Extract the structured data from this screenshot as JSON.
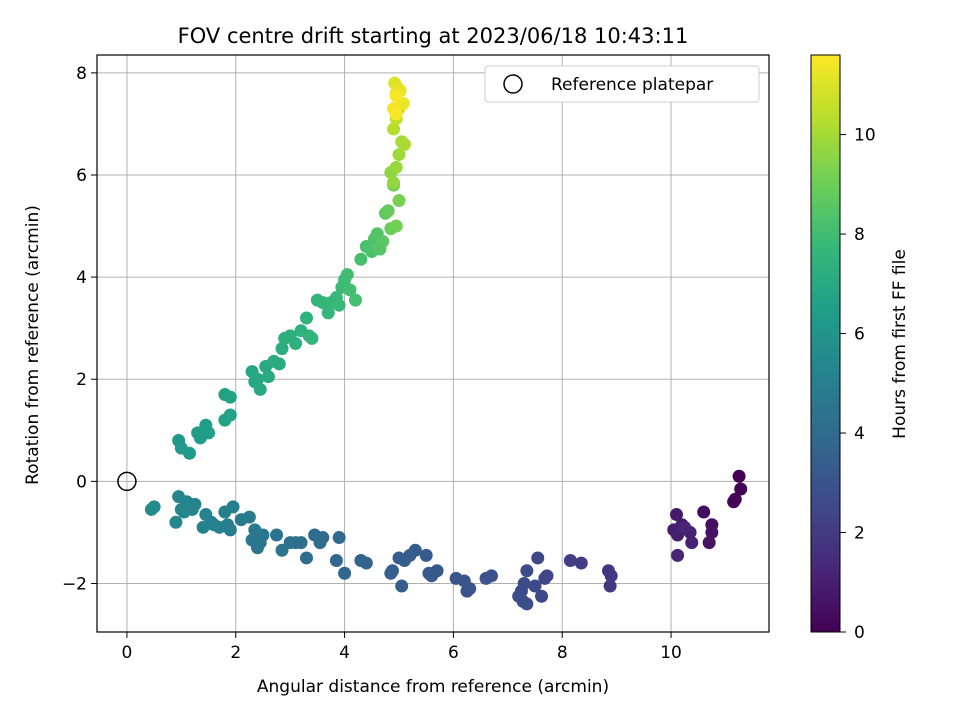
{
  "chart_data": {
    "type": "scatter",
    "title": "FOV centre drift starting at 2023/06/18 10:43:11",
    "xlabel": "Angular distance from reference (arcmin)",
    "ylabel": "Rotation from reference (arcmin)",
    "xlim": [
      -0.55,
      11.8
    ],
    "ylim": [
      -2.95,
      8.35
    ],
    "xticks": [
      0,
      2,
      4,
      6,
      8,
      10
    ],
    "yticks": [
      -2,
      0,
      2,
      4,
      6,
      8
    ],
    "grid": true,
    "legend": {
      "placement": "top-right",
      "entries": [
        "Reference platepar"
      ]
    },
    "reference_point": {
      "x": 0,
      "y": 0,
      "marker": "open-circle"
    },
    "colorbar": {
      "label": "Hours from first FF file",
      "range": [
        0,
        11.6
      ],
      "ticks": [
        0,
        2,
        4,
        6,
        8,
        10
      ],
      "colormap": "viridis",
      "stops": [
        "#440154",
        "#482878",
        "#3e4a89",
        "#31688e",
        "#26828e",
        "#1f9e89",
        "#35b779",
        "#6ece58",
        "#b5de2b",
        "#fde725"
      ]
    },
    "x": [
      11.25,
      11.28,
      11.18,
      11.15,
      10.6,
      10.75,
      10.75,
      10.7,
      10.1,
      10.2,
      10.05,
      10.12,
      10.35,
      10.38,
      10.12,
      10.25,
      8.85,
      8.9,
      8.88,
      8.35,
      8.15,
      7.72,
      7.68,
      7.62,
      7.55,
      7.5,
      7.35,
      7.3,
      7.25,
      7.2,
      7.28,
      7.35,
      6.7,
      6.6,
      6.3,
      6.25,
      6.2,
      6.05,
      5.7,
      5.6,
      5.55,
      5.5,
      5.3,
      5.2,
      5.1,
      5.05,
      5.0,
      4.88,
      4.85,
      4.4,
      4.3,
      4.0,
      3.9,
      3.85,
      3.6,
      3.55,
      3.45,
      3.3,
      3.2,
      3.1,
      3.0,
      2.85,
      2.75,
      2.5,
      2.45,
      2.4,
      2.3,
      2.35,
      2.25,
      2.1,
      1.95,
      1.9,
      1.85,
      1.8,
      1.7,
      1.6,
      1.55,
      1.45,
      1.4,
      1.25,
      1.2,
      1.1,
      1.05,
      1.0,
      0.95,
      0.9,
      0.5,
      0.45,
      0.95,
      1.0,
      1.15,
      1.3,
      1.35,
      1.45,
      1.5,
      1.8,
      1.9,
      1.9,
      1.8,
      2.3,
      2.35,
      2.4,
      2.45,
      2.55,
      2.6,
      2.7,
      2.8,
      2.85,
      2.9,
      3.0,
      3.1,
      3.2,
      3.3,
      3.35,
      3.4,
      3.5,
      3.6,
      3.7,
      3.75,
      3.85,
      3.9,
      3.95,
      4.0,
      4.05,
      4.1,
      4.2,
      4.3,
      4.4,
      4.5,
      4.55,
      4.6,
      4.65,
      4.7,
      4.75,
      4.8,
      4.85,
      4.9,
      4.95,
      5.0,
      4.85,
      4.9,
      4.95,
      5.0,
      5.05,
      5.1,
      4.9,
      4.95,
      5.0,
      4.95,
      4.92,
      4.98,
      5.02,
      5.08,
      4.9,
      4.95,
      4.95
    ],
    "y": [
      0.1,
      -0.15,
      -0.35,
      -0.4,
      -0.6,
      -0.85,
      -1.0,
      -1.2,
      -0.65,
      -0.85,
      -0.95,
      -1.05,
      -1.0,
      -1.2,
      -1.45,
      -0.9,
      -1.75,
      -1.85,
      -2.05,
      -1.6,
      -1.55,
      -1.85,
      -1.9,
      -2.25,
      -1.5,
      -2.05,
      -1.75,
      -2.0,
      -2.15,
      -2.25,
      -2.35,
      -2.4,
      -1.85,
      -1.9,
      -2.1,
      -2.15,
      -1.95,
      -1.9,
      -1.75,
      -1.85,
      -1.8,
      -1.45,
      -1.35,
      -1.45,
      -1.55,
      -2.05,
      -1.5,
      -1.75,
      -1.8,
      -1.6,
      -1.55,
      -1.8,
      -1.1,
      -1.55,
      -1.1,
      -1.2,
      -1.05,
      -1.5,
      -1.2,
      -1.2,
      -1.2,
      -1.35,
      -1.05,
      -1.05,
      -1.2,
      -1.3,
      -1.15,
      -0.95,
      -0.7,
      -0.75,
      -0.5,
      -0.95,
      -0.85,
      -0.6,
      -0.9,
      -0.85,
      -0.8,
      -0.65,
      -0.9,
      -0.45,
      -0.55,
      -0.4,
      -0.6,
      -0.55,
      -0.3,
      -0.8,
      -0.5,
      -0.55,
      0.8,
      0.65,
      0.55,
      0.95,
      0.85,
      1.1,
      0.95,
      1.7,
      1.65,
      1.3,
      1.2,
      2.15,
      1.95,
      2.0,
      1.8,
      2.25,
      2.05,
      2.35,
      2.3,
      2.6,
      2.8,
      2.85,
      2.7,
      2.95,
      3.2,
      2.85,
      2.8,
      3.55,
      3.5,
      3.3,
      3.5,
      3.6,
      3.45,
      3.8,
      3.95,
      4.05,
      3.75,
      3.55,
      4.35,
      4.6,
      4.5,
      4.75,
      4.85,
      4.55,
      4.7,
      5.25,
      5.3,
      4.95,
      5.8,
      5.0,
      5.5,
      6.05,
      5.85,
      6.15,
      6.4,
      6.65,
      6.6,
      6.9,
      7.1,
      7.3,
      7.6,
      7.8,
      7.7,
      7.65,
      7.4,
      7.3,
      7.55,
      7.2
    ],
    "hours": [
      0.0,
      0.05,
      0.1,
      0.15,
      0.4,
      0.5,
      0.55,
      0.6,
      0.8,
      0.9,
      0.95,
      1.0,
      1.05,
      1.1,
      1.15,
      1.2,
      1.8,
      1.85,
      1.9,
      2.1,
      2.15,
      2.4,
      2.45,
      2.5,
      2.5,
      2.55,
      2.6,
      2.62,
      2.65,
      2.7,
      2.72,
      2.75,
      2.9,
      2.92,
      3.0,
      3.02,
      3.05,
      3.1,
      3.2,
      3.22,
      3.25,
      3.3,
      3.35,
      3.38,
      3.4,
      3.42,
      3.45,
      3.5,
      3.52,
      3.7,
      3.75,
      3.85,
      3.95,
      3.9,
      4.0,
      4.05,
      4.1,
      4.15,
      4.2,
      4.25,
      4.3,
      4.4,
      4.45,
      4.55,
      4.6,
      4.62,
      4.65,
      4.7,
      4.75,
      4.8,
      4.9,
      4.95,
      5.0,
      5.02,
      5.05,
      5.1,
      5.12,
      5.15,
      5.18,
      5.22,
      5.25,
      5.3,
      5.32,
      5.35,
      5.4,
      5.45,
      5.55,
      5.6,
      6.2,
      6.25,
      6.3,
      6.35,
      6.4,
      6.45,
      6.5,
      6.6,
      6.65,
      6.65,
      6.7,
      6.8,
      6.85,
      6.9,
      6.95,
      7.0,
      7.05,
      7.1,
      7.15,
      7.2,
      7.25,
      7.3,
      7.35,
      7.4,
      7.45,
      7.5,
      7.55,
      7.6,
      7.65,
      7.7,
      7.75,
      7.8,
      7.85,
      7.9,
      7.95,
      8.0,
      8.05,
      8.1,
      8.15,
      8.2,
      8.3,
      8.35,
      8.4,
      8.5,
      8.6,
      8.7,
      8.8,
      8.9,
      9.0,
      9.1,
      9.2,
      9.6,
      9.7,
      9.8,
      9.9,
      10.0,
      10.1,
      10.3,
      10.5,
      10.7,
      10.9,
      11.0,
      11.1,
      11.2,
      11.3,
      11.4,
      11.5,
      11.5
    ]
  }
}
